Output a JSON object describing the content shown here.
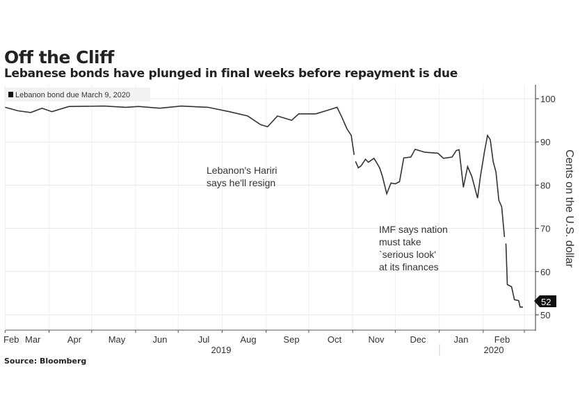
{
  "title": "Off the Cliff",
  "subtitle": "Lebanese bonds have plunged in final weeks before repayment is due",
  "source": "Source: Bloomberg",
  "chart_data": {
    "type": "line",
    "title": "Off the Cliff",
    "ylabel": "Cents on the U.S. dollar",
    "ylim": [
      50,
      100
    ],
    "yticks": [
      "50",
      "60",
      "70",
      "80",
      "90",
      "100"
    ],
    "xticks": [
      "Feb",
      "Mar",
      "Apr",
      "May",
      "Jun",
      "Jul",
      "Aug",
      "Sep",
      "Oct",
      "Nov",
      "Dec",
      "Jan",
      "Feb"
    ],
    "years": [
      "2019",
      "2020"
    ],
    "legend": "Lebanon bond due March 9, 2020",
    "last_value_label": "52",
    "annotations": [
      {
        "lines": [
          "Lebanon's Hariri",
          "says he'll resign"
        ]
      },
      {
        "lines": [
          "IMF says nation",
          "must take",
          "`serious look'",
          "at its finances"
        ]
      }
    ],
    "series": [
      {
        "name": "Lebanon bond due March 9, 2020",
        "points": [
          [
            "2019-03-01",
            98.0
          ],
          [
            "2019-03-10",
            97.2
          ],
          [
            "2019-03-19",
            96.8
          ],
          [
            "2019-03-27",
            97.8
          ],
          [
            "2019-04-03",
            97.0
          ],
          [
            "2019-04-15",
            98.2
          ],
          [
            "2019-05-10",
            98.3
          ],
          [
            "2019-05-25",
            98.0
          ],
          [
            "2019-06-03",
            98.2
          ],
          [
            "2019-06-18",
            97.8
          ],
          [
            "2019-07-03",
            98.3
          ],
          [
            "2019-07-22",
            98.0
          ],
          [
            "2019-08-06",
            97.0
          ],
          [
            "2019-08-19",
            96.0
          ],
          [
            "2019-08-28",
            94.0
          ],
          [
            "2019-09-02",
            93.5
          ],
          [
            "2019-09-09",
            96.0
          ],
          [
            "2019-09-19",
            95.0
          ],
          [
            "2019-09-24",
            96.5
          ],
          [
            "2019-10-06",
            96.5
          ],
          [
            "2019-10-16",
            97.5
          ],
          [
            "2019-10-21",
            98.0
          ],
          [
            "2019-10-24",
            96.0
          ],
          [
            "2019-10-28",
            93.0
          ],
          [
            "2019-10-31",
            91.5
          ],
          [
            "2019-11-02",
            87.0
          ],
          null,
          [
            "2019-11-03",
            85.5
          ],
          [
            "2019-11-05",
            84.0
          ],
          [
            "2019-11-07",
            84.5
          ],
          [
            "2019-11-10",
            86.0
          ],
          [
            "2019-11-12",
            85.3
          ],
          [
            "2019-11-16",
            86.2
          ],
          [
            "2019-11-20",
            84.0
          ],
          [
            "2019-11-22",
            82.0
          ],
          [
            "2019-11-25",
            78.0
          ],
          [
            "2019-11-28",
            80.5
          ],
          [
            "2019-12-01",
            80.3
          ],
          [
            "2019-12-04",
            80.8
          ],
          [
            "2019-12-07",
            86.3
          ],
          [
            "2019-12-12",
            86.5
          ],
          [
            "2019-12-15",
            88.3
          ],
          [
            "2019-12-22",
            87.6
          ],
          [
            "2019-12-31",
            87.4
          ],
          [
            "2020-01-04",
            86.2
          ],
          [
            "2020-01-10",
            86.5
          ],
          [
            "2020-01-13",
            88.0
          ],
          [
            "2020-01-15",
            88.2
          ],
          [
            "2020-01-18",
            79.5
          ],
          [
            "2020-01-21",
            84.3
          ],
          [
            "2020-01-24",
            82.0
          ],
          [
            "2020-01-28",
            77.0
          ],
          [
            "2020-01-30",
            82.0
          ],
          [
            "2020-02-02",
            88.0
          ],
          [
            "2020-02-04",
            91.5
          ],
          [
            "2020-02-06",
            90.5
          ],
          [
            "2020-02-08",
            85.5
          ],
          [
            "2020-02-10",
            83.0
          ],
          [
            "2020-02-12",
            76.5
          ],
          [
            "2020-02-14",
            75.0
          ],
          [
            "2020-02-16",
            68.0
          ],
          null,
          [
            "2020-02-17",
            66.5
          ],
          [
            "2020-02-18",
            57.0
          ],
          [
            "2020-02-21",
            56.5
          ],
          [
            "2020-02-23",
            53.5
          ],
          [
            "2020-02-26",
            53.3
          ],
          [
            "2020-02-27",
            51.8
          ],
          [
            "2020-02-29",
            51.8
          ]
        ]
      }
    ]
  },
  "colors": {
    "line": "#333333",
    "grid": "#e6e6e6",
    "badge": "#111111"
  }
}
